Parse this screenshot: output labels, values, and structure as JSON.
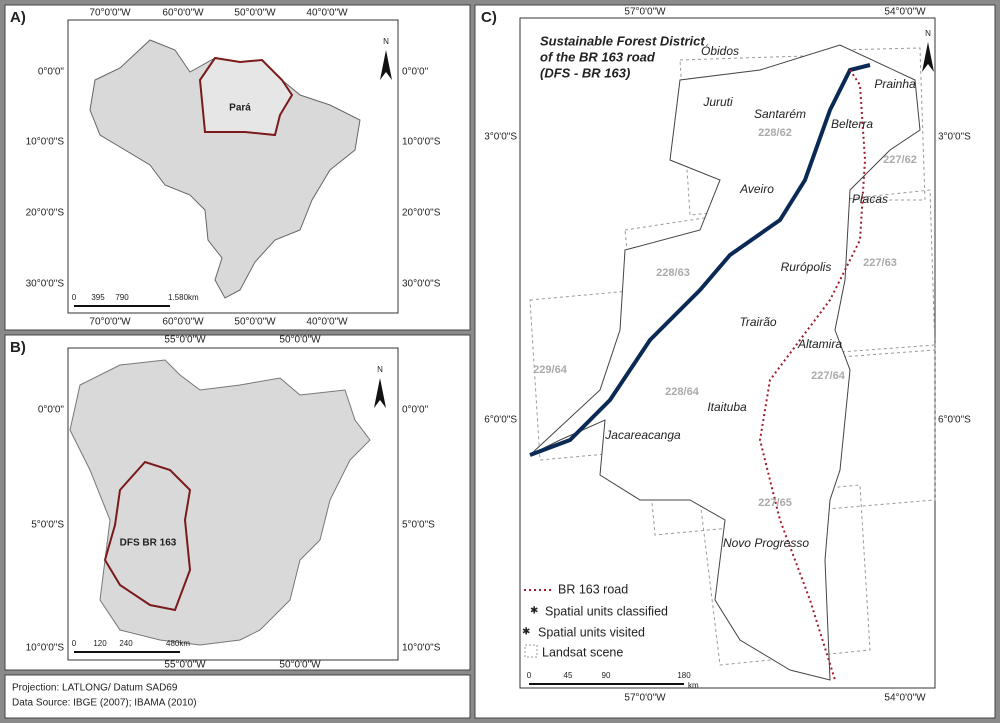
{
  "panel_a": {
    "label": "A)",
    "lon_labels": [
      "70°0'0\"W",
      "60°0'0\"W",
      "50°0'0\"W",
      "40°0'0\"W"
    ],
    "lat_labels": [
      "0°0'0\"",
      "10°0'0\"S",
      "20°0'0\"S",
      "30°0'0\"S"
    ],
    "state": "Pará",
    "scale": [
      "0",
      "395",
      "790",
      "1.580km"
    ],
    "north": "N"
  },
  "panel_b": {
    "label": "B)",
    "lon_labels": [
      "55°0'0\"W",
      "50°0'0\"W"
    ],
    "lat_labels": [
      "0°0'0\"",
      "5°0'0\"S",
      "10°0'0\"S"
    ],
    "district": "DFS BR 163",
    "scale": [
      "0",
      "120",
      "240",
      "480km"
    ],
    "north": "N"
  },
  "footer": [
    "Projection: LATLONG/ Datum SAD69",
    "Data Source: IBGE (2007); IBAMA (2010)"
  ],
  "panel_c": {
    "label": "C)",
    "title": [
      "Sustainable Forest District",
      "of the BR 163 road",
      "(DFS - BR 163)"
    ],
    "lon_labels": [
      "57°0'0\"W",
      "54°0'0\"W"
    ],
    "lat_labels": [
      "3°0'0\"S",
      "6°0'0\"S"
    ],
    "places": [
      "Óbidos",
      "Prainha",
      "Juruti",
      "Santarém",
      "Belterra",
      "Aveiro",
      "Placas",
      "Rurópolis",
      "Trairão",
      "Altamira",
      "Itaituba",
      "Jacareacanga",
      "Novo Progresso"
    ],
    "scenes": [
      "228/62",
      "227/62",
      "228/63",
      "227/63",
      "229/64",
      "228/64",
      "227/64",
      "227/65"
    ],
    "legend": [
      "BR 163 road",
      "Spatial units classified",
      "Spatial units visited",
      "Landsat scene"
    ],
    "scale": [
      "0",
      "45",
      "90",
      "180"
    ],
    "scale_unit": "km",
    "north": "N"
  }
}
